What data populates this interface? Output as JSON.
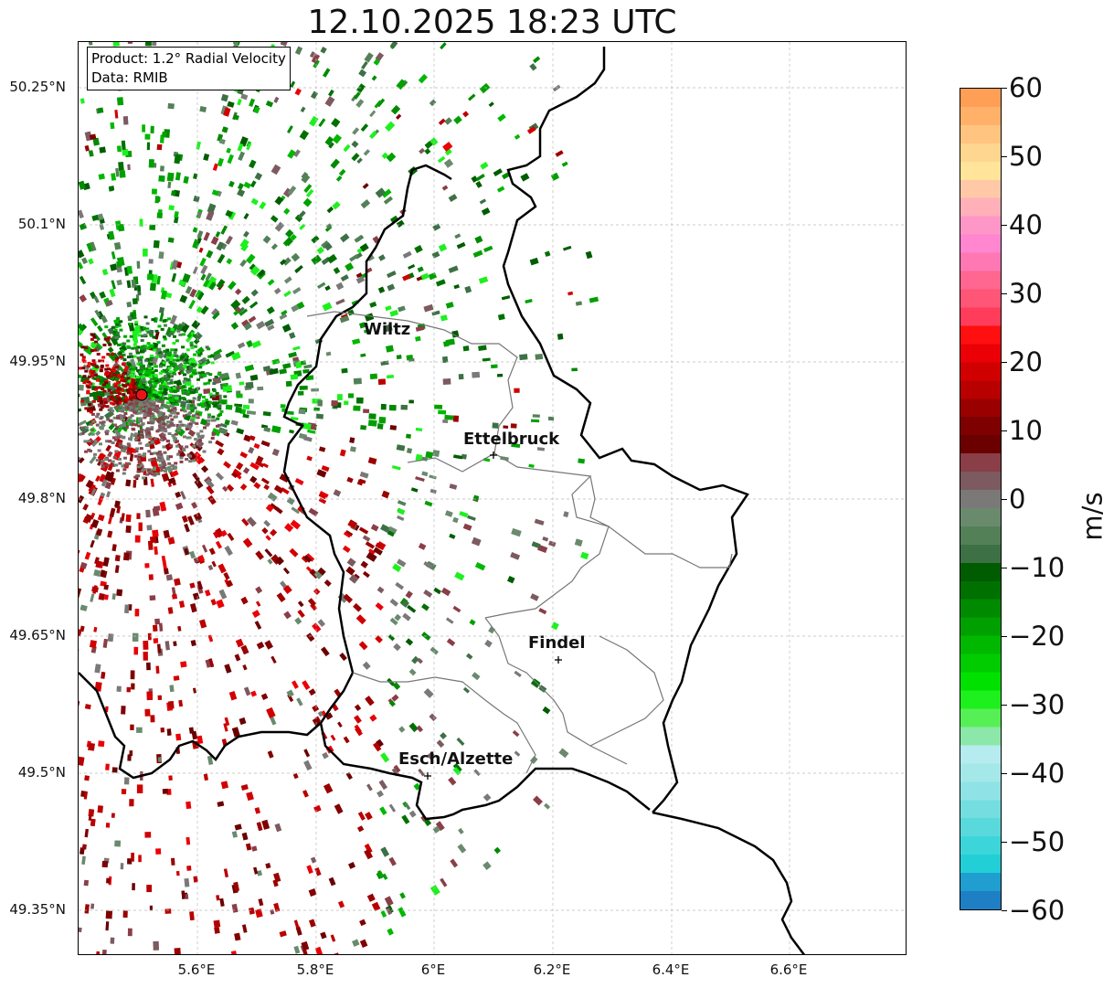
{
  "title": "12.10.2025 18:23 UTC",
  "info_box": {
    "product": "Product: 1.2° Radial Velocity",
    "data": "Data: RMIB"
  },
  "latitude_ticks": [
    "50.25°N",
    "50.1°N",
    "49.95°N",
    "49.8°N",
    "49.65°N",
    "49.5°N",
    "49.35°N"
  ],
  "longitude_ticks": [
    "5.6°E",
    "5.8°E",
    "6°E",
    "6.2°E",
    "6.4°E",
    "6.6°E"
  ],
  "cities": [
    {
      "name": "Wiltz"
    },
    {
      "name": "Ettelbruck"
    },
    {
      "name": "Findel"
    },
    {
      "name": "Esch/Alzette"
    }
  ],
  "radar_site": {
    "marker_color": "#e8141c"
  },
  "colorbar": {
    "label": "m/s",
    "min": -60,
    "max": 60,
    "ticks": [
      "60",
      "50",
      "40",
      "30",
      "20",
      "10",
      "0",
      "−10",
      "−20",
      "−30",
      "−40",
      "−50",
      "−60"
    ],
    "colors_top_to_bottom": [
      "#ff9f55",
      "#ffb16a",
      "#ffc47f",
      "#ffd690",
      "#ffe49a",
      "#ffc9a8",
      "#ffb0b8",
      "#ff96c8",
      "#ff86cf",
      "#ff78b4",
      "#ff6690",
      "#ff5576",
      "#ff3c5a",
      "#ff0f0f",
      "#ea0006",
      "#d10000",
      "#b80000",
      "#9a0000",
      "#7f0000",
      "#6a0000",
      "#8a3e48",
      "#7c5a60",
      "#7b7878",
      "#6a8a6e",
      "#548058",
      "#3e7046",
      "#005c00",
      "#007000",
      "#008a00",
      "#00a000",
      "#00b800",
      "#00cc00",
      "#00e100",
      "#1ef01e",
      "#56f056",
      "#8ce8a8",
      "#b6ecef",
      "#a5e8ea",
      "#8fe2e5",
      "#74dde0",
      "#5ad9dd",
      "#3cd6da",
      "#22cfd7",
      "#1f9ecf",
      "#1f7fc4"
    ]
  },
  "legend_label_title": "m/s"
}
